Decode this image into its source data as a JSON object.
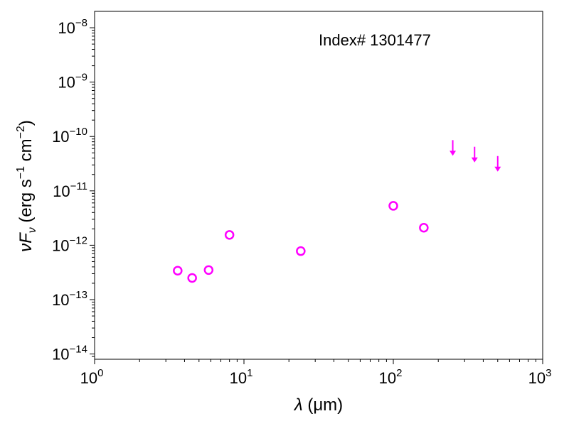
{
  "chart_data": {
    "type": "scatter",
    "annotation": "Index# 1301477",
    "xlabel": {
      "symbol": "λ",
      "unit": " (μm)"
    },
    "ylabel": {
      "symbol": "νF",
      "subscript": "ν",
      "unit_prefix": " (erg s",
      "sup1": "−1",
      "unit_mid": " cm",
      "sup2": "−2",
      "unit_suffix": ")"
    },
    "xscale": "log",
    "yscale": "log",
    "xlim": [
      1,
      1000
    ],
    "ylim": [
      8e-15,
      2e-08
    ],
    "x_ticks": [
      {
        "value": 1,
        "base": "10",
        "exp": "0"
      },
      {
        "value": 10,
        "base": "10",
        "exp": "1"
      },
      {
        "value": 100,
        "base": "10",
        "exp": "2"
      },
      {
        "value": 1000,
        "base": "10",
        "exp": "3"
      }
    ],
    "y_ticks": [
      {
        "value": 1e-14,
        "base": "10",
        "exp": "−14"
      },
      {
        "value": 1e-13,
        "base": "10",
        "exp": "−13"
      },
      {
        "value": 1e-12,
        "base": "10",
        "exp": "−12"
      },
      {
        "value": 1e-11,
        "base": "10",
        "exp": "−11"
      },
      {
        "value": 1e-10,
        "base": "10",
        "exp": "−10"
      },
      {
        "value": 1e-09,
        "base": "10",
        "exp": "−9"
      },
      {
        "value": 1e-08,
        "base": "10",
        "exp": "−8"
      }
    ],
    "grid": false,
    "color": "#ff00ff",
    "series": [
      {
        "marker": "open-circle",
        "points": [
          {
            "x": 3.6,
            "y": 3.4e-13
          },
          {
            "x": 4.5,
            "y": 2.5e-13
          },
          {
            "x": 5.8,
            "y": 3.5e-13
          },
          {
            "x": 8.0,
            "y": 1.55e-12
          },
          {
            "x": 24,
            "y": 7.8e-13
          },
          {
            "x": 100,
            "y": 5.3e-12
          },
          {
            "x": 160,
            "y": 2.1e-12
          }
        ]
      },
      {
        "marker": "upper-limit-arrow",
        "points": [
          {
            "x": 250,
            "y": 5.3e-11
          },
          {
            "x": 350,
            "y": 4e-11
          },
          {
            "x": 500,
            "y": 2.7e-11
          }
        ]
      }
    ]
  }
}
